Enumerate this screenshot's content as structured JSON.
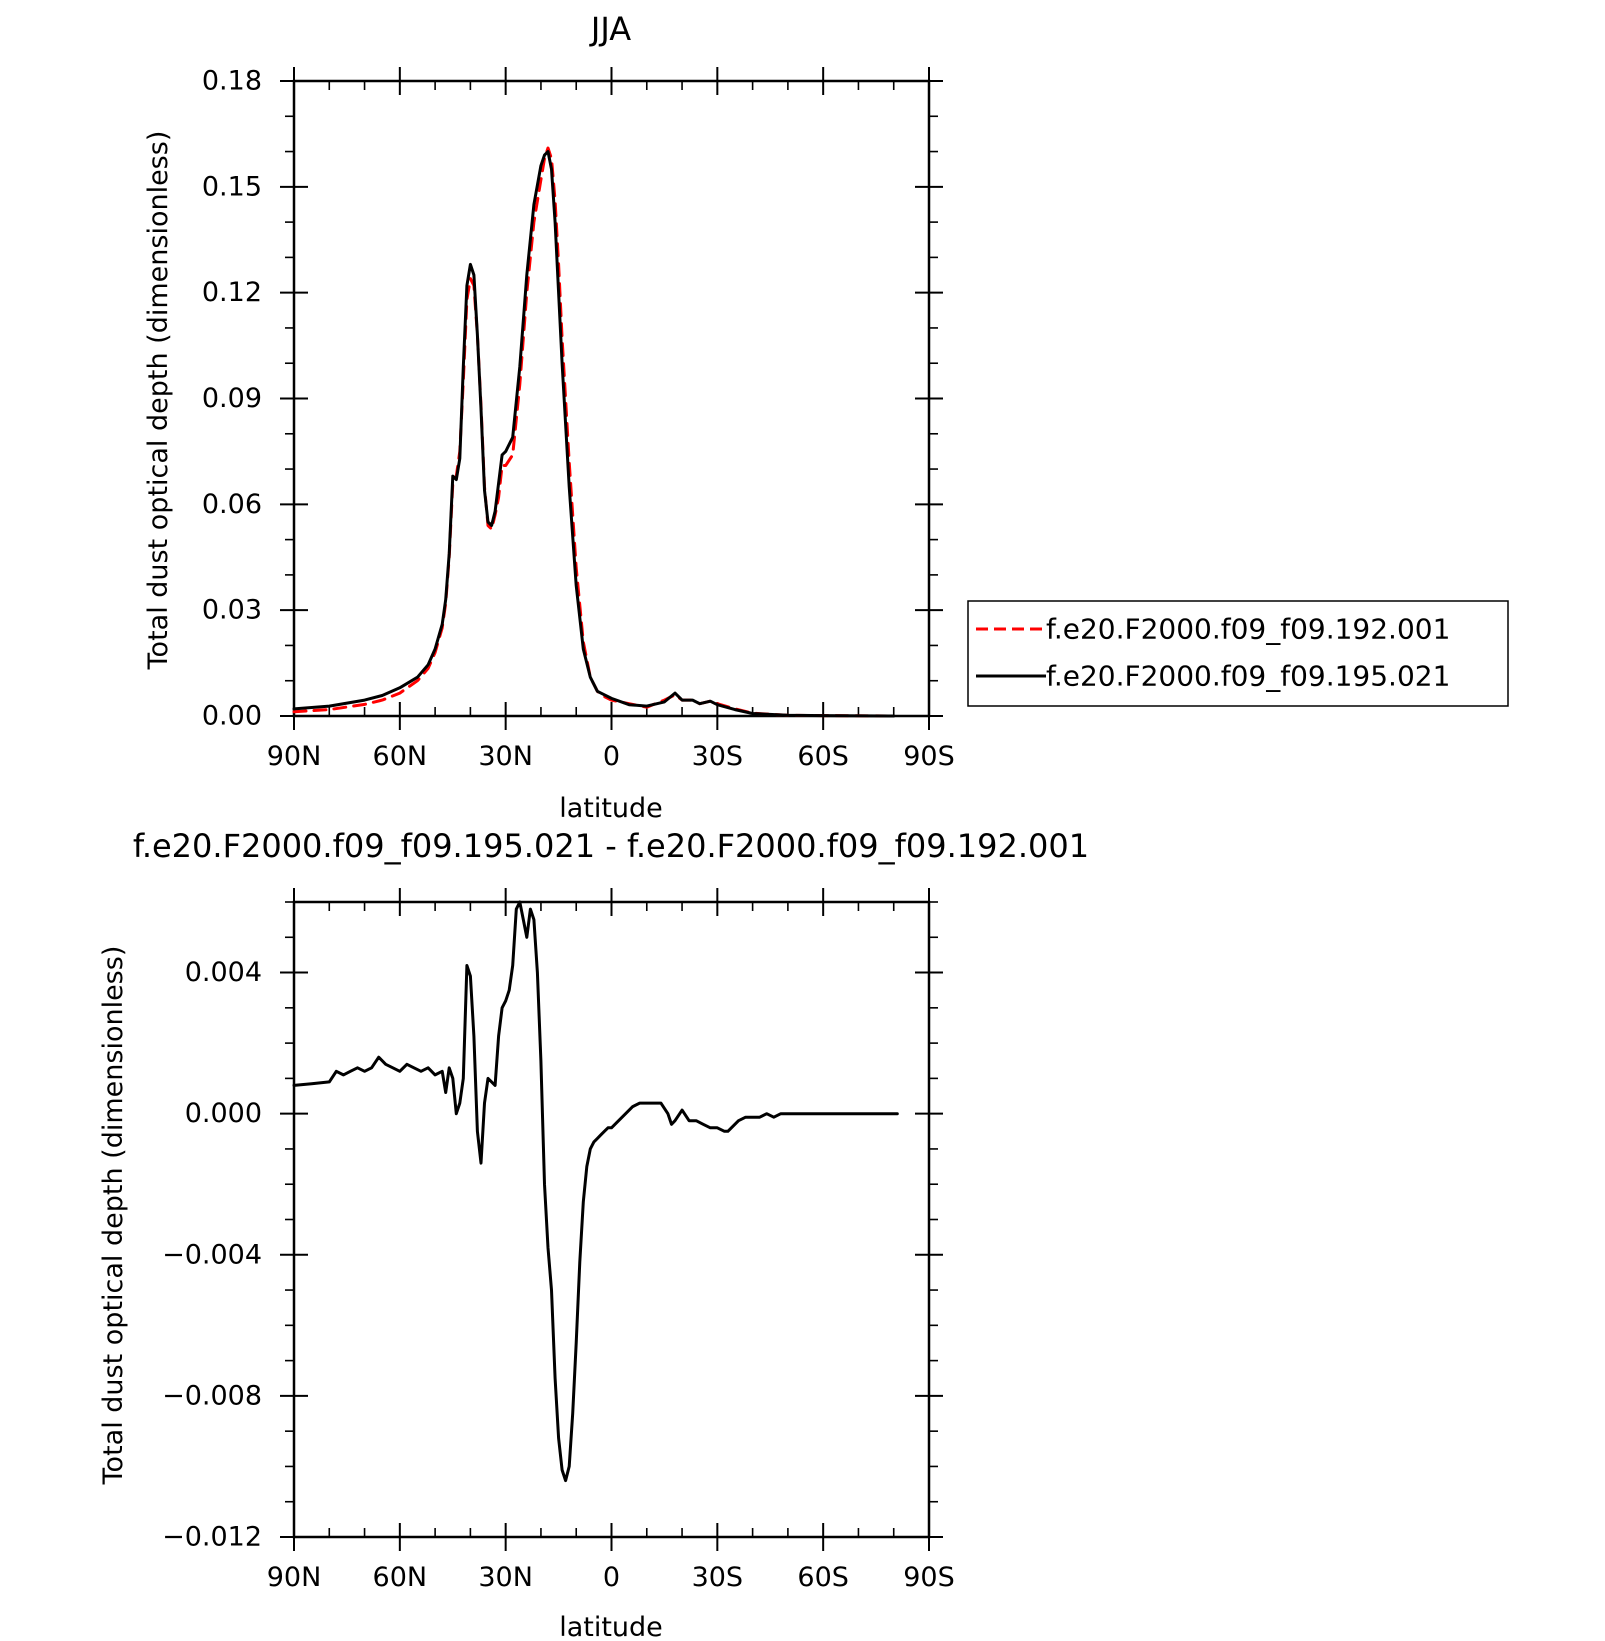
{
  "chart_data": [
    {
      "type": "line",
      "title": "JJA",
      "xlabel": "latitude",
      "ylabel": "Total dust optical depth (dimensionless)",
      "xlim": [
        90,
        -90
      ],
      "ylim": [
        0,
        0.18
      ],
      "x_ticks": [
        90,
        60,
        30,
        0,
        -30,
        -60,
        -90
      ],
      "x_tick_labels": [
        "90N",
        "60N",
        "30N",
        "0",
        "30S",
        "60S",
        "90S"
      ],
      "y_ticks": [
        0,
        0.03,
        0.06,
        0.09,
        0.12,
        0.15,
        0.18
      ],
      "y_tick_labels": [
        "0.00",
        "0.03",
        "0.06",
        "0.09",
        "0.12",
        "0.15",
        "0.18"
      ],
      "legend_position": "right",
      "series": [
        {
          "name": "f.e20.F2000.f09_f09.192.001",
          "color": "#ff0000",
          "dash": "dashed",
          "x": [
            90,
            80,
            70,
            65,
            60,
            55,
            52,
            50,
            48,
            47,
            46,
            45,
            44,
            43,
            42,
            41,
            40,
            39,
            38,
            37,
            36,
            35,
            34,
            33,
            32,
            31,
            30,
            28,
            26,
            24,
            22,
            20,
            19,
            18,
            17,
            16,
            15,
            14,
            12,
            10,
            8,
            6,
            4,
            2,
            0,
            -5,
            -10,
            -15,
            -18,
            -20,
            -23,
            -25,
            -28,
            -30,
            -35,
            -40,
            -50,
            -60,
            -80
          ],
          "y": [
            0.0012,
            0.0018,
            0.0033,
            0.0045,
            0.0065,
            0.01,
            0.0135,
            0.018,
            0.025,
            0.032,
            0.045,
            0.066,
            0.068,
            0.075,
            0.095,
            0.118,
            0.124,
            0.122,
            0.108,
            0.088,
            0.065,
            0.054,
            0.053,
            0.057,
            0.062,
            0.071,
            0.071,
            0.074,
            0.094,
            0.12,
            0.14,
            0.152,
            0.158,
            0.161,
            0.158,
            0.146,
            0.128,
            0.107,
            0.072,
            0.042,
            0.021,
            0.011,
            0.007,
            0.0055,
            0.0045,
            0.0035,
            0.0025,
            0.0045,
            0.006,
            0.0045,
            0.0045,
            0.0035,
            0.0042,
            0.0035,
            0.002,
            0.0008,
            0.0002,
            0.0001,
            0
          ]
        },
        {
          "name": "f.e20.F2000.f09_f09.195.021",
          "color": "#000000",
          "dash": "solid",
          "x": [
            90,
            80,
            70,
            65,
            60,
            55,
            52,
            50,
            48,
            47,
            46,
            45,
            44,
            43,
            42,
            41,
            40,
            39,
            38,
            37,
            36,
            35,
            34,
            33,
            32,
            31,
            30,
            28,
            26,
            24,
            22,
            20,
            19,
            18,
            17,
            16,
            15,
            14,
            12,
            10,
            8,
            6,
            4,
            2,
            0,
            -5,
            -10,
            -15,
            -18,
            -20,
            -23,
            -25,
            -28,
            -30,
            -35,
            -40,
            -50,
            -60,
            -80
          ],
          "y": [
            0.002,
            0.0028,
            0.0045,
            0.0058,
            0.008,
            0.011,
            0.0145,
            0.019,
            0.026,
            0.033,
            0.046,
            0.068,
            0.067,
            0.073,
            0.099,
            0.122,
            0.128,
            0.125,
            0.108,
            0.087,
            0.064,
            0.055,
            0.054,
            0.058,
            0.066,
            0.074,
            0.075,
            0.079,
            0.099,
            0.125,
            0.145,
            0.156,
            0.159,
            0.16,
            0.155,
            0.14,
            0.12,
            0.1,
            0.065,
            0.037,
            0.019,
            0.011,
            0.007,
            0.006,
            0.005,
            0.0032,
            0.0028,
            0.004,
            0.0065,
            0.0045,
            0.0045,
            0.0035,
            0.0042,
            0.0032,
            0.0018,
            0.0007,
            0.0002,
            0.0001,
            0
          ]
        }
      ]
    },
    {
      "type": "line",
      "title": "f.e20.F2000.f09_f09.195.021 - f.e20.F2000.f09_f09.192.001",
      "xlabel": "latitude",
      "ylabel": "Total dust optical depth (dimensionless)",
      "xlim": [
        90,
        -90
      ],
      "ylim": [
        -0.012,
        0.006
      ],
      "x_ticks": [
        90,
        60,
        30,
        0,
        -30,
        -60,
        -90
      ],
      "x_tick_labels": [
        "90N",
        "60N",
        "30N",
        "0",
        "30S",
        "60S",
        "90S"
      ],
      "y_ticks": [
        -0.012,
        -0.008,
        -0.004,
        0,
        0.004
      ],
      "y_tick_labels": [
        "−0.012",
        "−0.008",
        "−0.004",
        "0.000",
        "0.004"
      ],
      "series": [
        {
          "color": "#000000",
          "dash": "solid",
          "x": [
            90,
            85,
            80,
            78,
            76,
            74,
            72,
            70,
            68,
            66,
            64,
            62,
            60,
            58,
            56,
            54,
            52,
            50,
            48,
            47,
            46,
            45,
            44,
            43,
            42,
            41,
            40,
            39,
            38,
            37,
            36,
            35,
            34,
            33,
            32,
            31,
            30,
            29,
            28,
            27,
            26,
            25,
            24,
            23,
            22,
            21,
            20,
            19,
            18,
            17,
            16,
            15,
            14,
            13,
            12,
            11,
            10,
            9,
            8,
            7,
            6,
            5,
            4,
            3,
            2,
            1,
            0,
            -2,
            -4,
            -6,
            -8,
            -10,
            -12,
            -14,
            -16,
            -17,
            -18,
            -20,
            -22,
            -24,
            -26,
            -28,
            -30,
            -32,
            -33,
            -34,
            -36,
            -38,
            -40,
            -42,
            -44,
            -46,
            -48,
            -50,
            -55,
            -60,
            -65,
            -70,
            -75,
            -80,
            -81
          ],
          "y": [
            0.0008,
            0.00085,
            0.0009,
            0.0012,
            0.0011,
            0.0012,
            0.0013,
            0.0012,
            0.0013,
            0.0016,
            0.0014,
            0.0013,
            0.0012,
            0.0014,
            0.0013,
            0.0012,
            0.0013,
            0.0011,
            0.0012,
            0.0006,
            0.0013,
            0.001,
            0.0,
            0.0003,
            0.001,
            0.0042,
            0.0039,
            0.0022,
            -0.0005,
            -0.0014,
            0.0003,
            0.001,
            0.0009,
            0.0008,
            0.0022,
            0.003,
            0.0032,
            0.0035,
            0.0042,
            0.0058,
            0.006,
            0.0055,
            0.005,
            0.0058,
            0.0055,
            0.004,
            0.0015,
            -0.002,
            -0.0038,
            -0.005,
            -0.0075,
            -0.0092,
            -0.0101,
            -0.0104,
            -0.01,
            -0.0085,
            -0.0065,
            -0.0042,
            -0.0025,
            -0.0015,
            -0.001,
            -0.0008,
            -0.0007,
            -0.0006,
            -0.0005,
            -0.0004,
            -0.0004,
            -0.0002,
            0.0,
            0.0002,
            0.0003,
            0.0003,
            0.0003,
            0.0003,
            0.0,
            -0.0003,
            -0.0002,
            0.0001,
            -0.0002,
            -0.0002,
            -0.0003,
            -0.0004,
            -0.0004,
            -0.0005,
            -0.0005,
            -0.0004,
            -0.0002,
            -0.0001,
            -0.0001,
            -0.0001,
            0.0,
            -0.0001,
            0.0,
            0.0,
            0.0,
            0.0,
            0.0,
            0.0,
            0.0,
            0.0,
            0.0
          ]
        }
      ]
    }
  ]
}
